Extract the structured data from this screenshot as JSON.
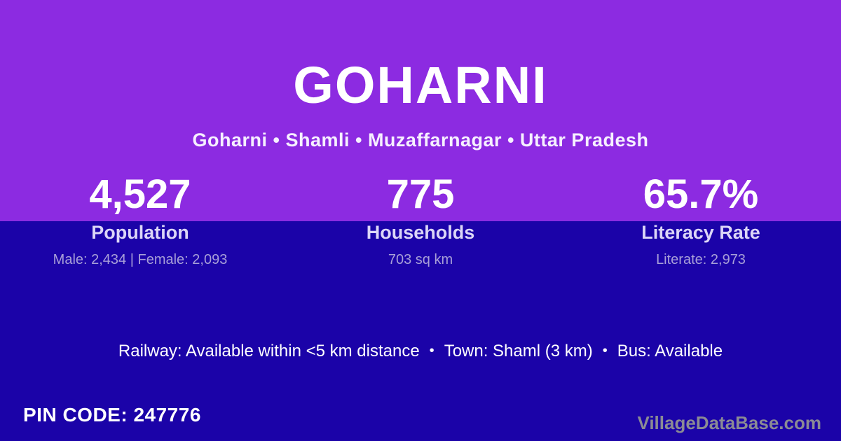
{
  "theme": {
    "top_bg": "#8c2be1",
    "bottom_bg": "#1b03a8",
    "label_color": "#dcd6f7",
    "sublabel_color": "#a89fd8",
    "watermark_color": "#8b8b94",
    "text_white": "#ffffff",
    "subtitle_color": "#f6f0ff"
  },
  "header": {
    "title": "GOHARNI",
    "breadcrumb": "Goharni • Shamli • Muzaffarnagar • Uttar Pradesh"
  },
  "stats": [
    {
      "value": "4,527",
      "label": "Population",
      "detail": "Male: 2,434 | Female: 2,093"
    },
    {
      "value": "775",
      "label": "Households",
      "detail": "703 sq km"
    },
    {
      "value": "65.7%",
      "label": "Literacy Rate",
      "detail": "Literate: 2,973"
    }
  ],
  "transport": {
    "railway": "Railway: Available within <5 km distance",
    "separator": "•",
    "town": "Town: Shaml (3 km)",
    "bus": "Bus: Available"
  },
  "footer": {
    "pin_code": "PIN CODE: 247776",
    "watermark": "VillageDataBase.com"
  }
}
